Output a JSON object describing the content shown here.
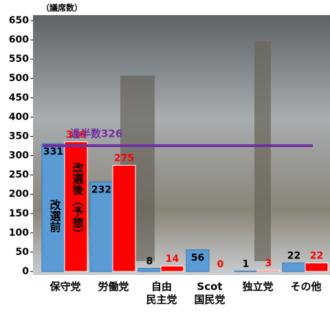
{
  "chart_data": {
    "type": "bar",
    "unit_label": "（議席数）",
    "categories": [
      "保守党",
      "労働党",
      "自由\n民主党",
      "Scot\n国民党",
      "独立党",
      "その他"
    ],
    "series": [
      {
        "name": "改選前",
        "color": "#5b9bd5",
        "values": [
          331,
          232,
          8,
          56,
          1,
          22
        ]
      },
      {
        "name": "改選後（予想）",
        "color": "#ff0000",
        "values": [
          336,
          275,
          14,
          0,
          3,
          22
        ]
      }
    ],
    "majority_line": {
      "label": "過半数326",
      "value": 326,
      "color": "#7030a0"
    },
    "ylim": [
      0,
      650
    ],
    "yticks": [
      0,
      50,
      100,
      150,
      200,
      250,
      300,
      350,
      400,
      450,
      500,
      550,
      600,
      650
    ]
  }
}
